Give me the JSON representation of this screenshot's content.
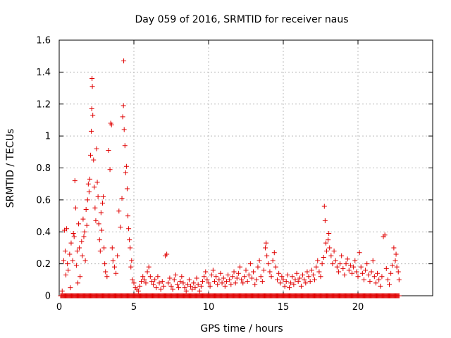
{
  "chart_data": {
    "type": "scatter",
    "title": "Day 059 of 2016, SRMTID for receiver naus",
    "xlabel": "GPS time / hours",
    "ylabel": "SRMTID / TECUs",
    "xlim": [
      0,
      25
    ],
    "ylim": [
      0,
      1.6
    ],
    "xticks": [
      0,
      5,
      10,
      15,
      20
    ],
    "yticks": [
      0,
      0.2,
      0.4,
      0.6,
      0.8,
      1,
      1.2,
      1.4,
      1.6
    ],
    "xtick_labels": [
      "0",
      "5",
      "10",
      "15",
      "20"
    ],
    "ytick_labels": [
      "0",
      "0.2",
      "0.4",
      "0.6",
      "0.8",
      "1",
      "1.2",
      "1.4",
      "1.6"
    ],
    "grid": true,
    "marker": "+",
    "color": "#e00000",
    "series": [
      {
        "name": "SRMTID",
        "points": [
          [
            0.1,
            0.0
          ],
          [
            0.2,
            0.03
          ],
          [
            0.3,
            0.22
          ],
          [
            0.35,
            0.41
          ],
          [
            0.4,
            0.28
          ],
          [
            0.45,
            0.13
          ],
          [
            0.5,
            0.42
          ],
          [
            0.55,
            0.2
          ],
          [
            0.6,
            0.16
          ],
          [
            0.7,
            0.26
          ],
          [
            0.75,
            0.05
          ],
          [
            0.8,
            0.33
          ],
          [
            0.85,
            0.0
          ],
          [
            0.9,
            0.22
          ],
          [
            0.95,
            0.39
          ],
          [
            1.0,
            0.37
          ],
          [
            1.05,
            0.72
          ],
          [
            1.1,
            0.55
          ],
          [
            1.15,
            0.19
          ],
          [
            1.2,
            0.28
          ],
          [
            1.25,
            0.08
          ],
          [
            1.3,
            0.45
          ],
          [
            1.35,
            0.3
          ],
          [
            1.4,
            0.12
          ],
          [
            1.5,
            0.34
          ],
          [
            1.55,
            0.25
          ],
          [
            1.6,
            0.48
          ],
          [
            1.65,
            0.37
          ],
          [
            1.7,
            0.4
          ],
          [
            1.75,
            0.22
          ],
          [
            1.8,
            0.54
          ],
          [
            1.85,
            0.44
          ],
          [
            1.9,
            0.6
          ],
          [
            1.95,
            0.7
          ],
          [
            2.0,
            0.65
          ],
          [
            2.05,
            0.73
          ],
          [
            2.1,
            0.88
          ],
          [
            2.15,
            1.03
          ],
          [
            2.18,
            1.17
          ],
          [
            2.2,
            1.36
          ],
          [
            2.22,
            1.31
          ],
          [
            2.25,
            1.13
          ],
          [
            2.3,
            0.85
          ],
          [
            2.35,
            0.68
          ],
          [
            2.4,
            0.55
          ],
          [
            2.45,
            0.47
          ],
          [
            2.5,
            0.92
          ],
          [
            2.55,
            0.71
          ],
          [
            2.6,
            0.62
          ],
          [
            2.65,
            0.45
          ],
          [
            2.7,
            0.35
          ],
          [
            2.75,
            0.28
          ],
          [
            2.8,
            0.52
          ],
          [
            2.85,
            0.41
          ],
          [
            2.9,
            0.58
          ],
          [
            2.95,
            0.62
          ],
          [
            3.0,
            0.3
          ],
          [
            3.05,
            0.2
          ],
          [
            3.1,
            0.15
          ],
          [
            3.2,
            0.12
          ],
          [
            3.3,
            0.91
          ],
          [
            3.4,
            0.79
          ],
          [
            3.45,
            1.08
          ],
          [
            3.5,
            1.07
          ],
          [
            3.55,
            0.3
          ],
          [
            3.6,
            0.22
          ],
          [
            3.7,
            0.18
          ],
          [
            3.8,
            0.14
          ],
          [
            3.9,
            0.25
          ],
          [
            4.0,
            0.53
          ],
          [
            4.1,
            0.43
          ],
          [
            4.2,
            0.61
          ],
          [
            4.25,
            1.12
          ],
          [
            4.3,
            1.19
          ],
          [
            4.32,
            1.47
          ],
          [
            4.35,
            1.04
          ],
          [
            4.4,
            0.94
          ],
          [
            4.45,
            0.77
          ],
          [
            4.5,
            0.81
          ],
          [
            4.55,
            0.67
          ],
          [
            4.6,
            0.5
          ],
          [
            4.65,
            0.42
          ],
          [
            4.7,
            0.35
          ],
          [
            4.75,
            0.3
          ],
          [
            4.8,
            0.18
          ],
          [
            4.85,
            0.22
          ],
          [
            4.9,
            0.1
          ],
          [
            5.0,
            0.08
          ],
          [
            5.1,
            0.05
          ],
          [
            5.2,
            0.04
          ],
          [
            5.3,
            0.03
          ],
          [
            5.4,
            0.06
          ],
          [
            5.5,
            0.09
          ],
          [
            5.6,
            0.12
          ],
          [
            5.7,
            0.1
          ],
          [
            5.8,
            0.08
          ],
          [
            5.9,
            0.15
          ],
          [
            6.0,
            0.18
          ],
          [
            6.1,
            0.12
          ],
          [
            6.2,
            0.09
          ],
          [
            6.3,
            0.07
          ],
          [
            6.4,
            0.1
          ],
          [
            6.5,
            0.05
          ],
          [
            6.6,
            0.12
          ],
          [
            6.7,
            0.08
          ],
          [
            6.8,
            0.04
          ],
          [
            6.9,
            0.09
          ],
          [
            7.0,
            0.06
          ],
          [
            7.1,
            0.25
          ],
          [
            7.2,
            0.26
          ],
          [
            7.3,
            0.08
          ],
          [
            7.4,
            0.11
          ],
          [
            7.5,
            0.06
          ],
          [
            7.6,
            0.04
          ],
          [
            7.7,
            0.1
          ],
          [
            7.8,
            0.13
          ],
          [
            7.9,
            0.07
          ],
          [
            8.0,
            0.05
          ],
          [
            8.1,
            0.09
          ],
          [
            8.2,
            0.12
          ],
          [
            8.3,
            0.08
          ],
          [
            8.4,
            0.05
          ],
          [
            8.5,
            0.03
          ],
          [
            8.6,
            0.07
          ],
          [
            8.7,
            0.1
          ],
          [
            8.8,
            0.06
          ],
          [
            8.9,
            0.04
          ],
          [
            9.0,
            0.08
          ],
          [
            9.1,
            0.05
          ],
          [
            9.2,
            0.11
          ],
          [
            9.3,
            0.07
          ],
          [
            9.4,
            0.03
          ],
          [
            9.5,
            0.06
          ],
          [
            9.6,
            0.09
          ],
          [
            9.7,
            0.12
          ],
          [
            9.8,
            0.15
          ],
          [
            9.9,
            0.1
          ],
          [
            10.0,
            0.08
          ],
          [
            10.1,
            0.06
          ],
          [
            10.2,
            0.13
          ],
          [
            10.3,
            0.16
          ],
          [
            10.4,
            0.09
          ],
          [
            10.5,
            0.12
          ],
          [
            10.6,
            0.07
          ],
          [
            10.7,
            0.1
          ],
          [
            10.8,
            0.14
          ],
          [
            10.9,
            0.08
          ],
          [
            11.0,
            0.11
          ],
          [
            11.1,
            0.06
          ],
          [
            11.2,
            0.09
          ],
          [
            11.3,
            0.13
          ],
          [
            11.4,
            0.1
          ],
          [
            11.5,
            0.07
          ],
          [
            11.6,
            0.12
          ],
          [
            11.7,
            0.15
          ],
          [
            11.8,
            0.08
          ],
          [
            11.9,
            0.11
          ],
          [
            12.0,
            0.14
          ],
          [
            12.1,
            0.18
          ],
          [
            12.2,
            0.1
          ],
          [
            12.3,
            0.08
          ],
          [
            12.4,
            0.12
          ],
          [
            12.5,
            0.16
          ],
          [
            12.6,
            0.09
          ],
          [
            12.7,
            0.13
          ],
          [
            12.8,
            0.2
          ],
          [
            12.9,
            0.11
          ],
          [
            13.0,
            0.15
          ],
          [
            13.1,
            0.07
          ],
          [
            13.2,
            0.1
          ],
          [
            13.3,
            0.18
          ],
          [
            13.4,
            0.22
          ],
          [
            13.5,
            0.12
          ],
          [
            13.6,
            0.09
          ],
          [
            13.7,
            0.16
          ],
          [
            13.8,
            0.3
          ],
          [
            13.85,
            0.33
          ],
          [
            13.9,
            0.25
          ],
          [
            14.0,
            0.2
          ],
          [
            14.1,
            0.15
          ],
          [
            14.2,
            0.12
          ],
          [
            14.3,
            0.22
          ],
          [
            14.4,
            0.27
          ],
          [
            14.5,
            0.18
          ],
          [
            14.6,
            0.1
          ],
          [
            14.7,
            0.14
          ],
          [
            14.8,
            0.08
          ],
          [
            14.9,
            0.12
          ],
          [
            15.0,
            0.1
          ],
          [
            15.1,
            0.06
          ],
          [
            15.2,
            0.09
          ],
          [
            15.3,
            0.13
          ],
          [
            15.4,
            0.05
          ],
          [
            15.5,
            0.08
          ],
          [
            15.6,
            0.12
          ],
          [
            15.7,
            0.07
          ],
          [
            15.8,
            0.1
          ],
          [
            15.9,
            0.14
          ],
          [
            16.0,
            0.09
          ],
          [
            16.1,
            0.11
          ],
          [
            16.2,
            0.06
          ],
          [
            16.3,
            0.13
          ],
          [
            16.4,
            0.1
          ],
          [
            16.5,
            0.08
          ],
          [
            16.6,
            0.15
          ],
          [
            16.7,
            0.12
          ],
          [
            16.8,
            0.09
          ],
          [
            16.9,
            0.16
          ],
          [
            17.0,
            0.13
          ],
          [
            17.1,
            0.1
          ],
          [
            17.2,
            0.18
          ],
          [
            17.3,
            0.22
          ],
          [
            17.4,
            0.15
          ],
          [
            17.5,
            0.12
          ],
          [
            17.6,
            0.2
          ],
          [
            17.7,
            0.24
          ],
          [
            17.75,
            0.56
          ],
          [
            17.8,
            0.47
          ],
          [
            17.85,
            0.33
          ],
          [
            17.9,
            0.28
          ],
          [
            18.0,
            0.35
          ],
          [
            18.05,
            0.39
          ],
          [
            18.1,
            0.3
          ],
          [
            18.2,
            0.25
          ],
          [
            18.3,
            0.2
          ],
          [
            18.4,
            0.28
          ],
          [
            18.5,
            0.22
          ],
          [
            18.6,
            0.18
          ],
          [
            18.7,
            0.15
          ],
          [
            18.8,
            0.2
          ],
          [
            18.9,
            0.25
          ],
          [
            19.0,
            0.17
          ],
          [
            19.1,
            0.13
          ],
          [
            19.2,
            0.2
          ],
          [
            19.3,
            0.23
          ],
          [
            19.4,
            0.16
          ],
          [
            19.5,
            0.19
          ],
          [
            19.6,
            0.14
          ],
          [
            19.7,
            0.18
          ],
          [
            19.8,
            0.22
          ],
          [
            19.9,
            0.15
          ],
          [
            20.0,
            0.12
          ],
          [
            20.1,
            0.27
          ],
          [
            20.2,
            0.18
          ],
          [
            20.3,
            0.14
          ],
          [
            20.4,
            0.1
          ],
          [
            20.5,
            0.16
          ],
          [
            20.6,
            0.2
          ],
          [
            20.7,
            0.13
          ],
          [
            20.8,
            0.09
          ],
          [
            20.9,
            0.15
          ],
          [
            21.0,
            0.22
          ],
          [
            21.1,
            0.12
          ],
          [
            21.2,
            0.08
          ],
          [
            21.3,
            0.14
          ],
          [
            21.4,
            0.1
          ],
          [
            21.5,
            0.06
          ],
          [
            21.6,
            0.12
          ],
          [
            21.7,
            0.37
          ],
          [
            21.8,
            0.38
          ],
          [
            21.9,
            0.17
          ],
          [
            22.0,
            0.1
          ],
          [
            22.1,
            0.07
          ],
          [
            22.2,
            0.14
          ],
          [
            22.3,
            0.19
          ],
          [
            22.4,
            0.3
          ],
          [
            22.5,
            0.22
          ],
          [
            22.55,
            0.26
          ],
          [
            22.6,
            0.18
          ],
          [
            22.7,
            0.15
          ],
          [
            22.75,
            0.1
          ]
        ]
      }
    ],
    "zero_band": {
      "x_start": 0.1,
      "x_end": 22.8,
      "y": 0
    }
  }
}
